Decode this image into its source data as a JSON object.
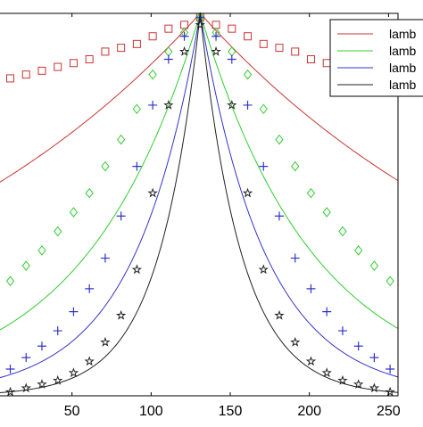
{
  "chart_data": {
    "type": "line",
    "title": "",
    "xlabel": "",
    "ylabel": "",
    "xlim": [
      0,
      256
    ],
    "ylim": [
      0,
      1
    ],
    "x_ticks": [
      50,
      100,
      150,
      200,
      250
    ],
    "x_tick_labels": [
      "50",
      "100",
      "150",
      "200",
      "250"
    ],
    "grid": false,
    "legend": {
      "placement": "top-right",
      "entries": [
        "lamb",
        "lamb",
        "lamb",
        "lamb"
      ]
    },
    "peak_x": 131,
    "marker_spacing": 10,
    "series": [
      {
        "color": "#cc3333",
        "marker": "square",
        "decay_rate": 0.0046,
        "values": [
          0.81,
          0.83,
          0.84,
          0.85,
          0.86,
          0.87,
          0.88,
          0.9,
          0.91,
          0.92,
          0.94,
          0.96,
          0.97,
          0.99,
          0.97,
          0.96,
          0.94,
          0.92,
          0.91,
          0.9,
          0.88,
          0.87,
          0.86,
          0.85,
          0.84,
          0.83,
          0.81
        ]
      },
      {
        "color": "#33cc33",
        "marker": "diamond",
        "decay_rate": 0.0139,
        "values": [
          0.26,
          0.3,
          0.34,
          0.38,
          0.43,
          0.48,
          0.53,
          0.6,
          0.67,
          0.75,
          0.84,
          0.9,
          0.95,
          0.99,
          0.95,
          0.9,
          0.84,
          0.75,
          0.67,
          0.6,
          0.53,
          0.48,
          0.43,
          0.38,
          0.34,
          0.3,
          0.26
        ]
      },
      {
        "color": "#3333cc",
        "marker": "plus",
        "decay_rate": 0.0241,
        "values": [
          0.05,
          0.07,
          0.1,
          0.13,
          0.17,
          0.22,
          0.28,
          0.36,
          0.47,
          0.6,
          0.76,
          0.88,
          0.94,
          0.99,
          0.94,
          0.88,
          0.76,
          0.6,
          0.47,
          0.36,
          0.28,
          0.22,
          0.17,
          0.13,
          0.1,
          0.07,
          0.05
        ]
      },
      {
        "color": "#222222",
        "marker": "star",
        "decay_rate": 0.038,
        "values": [
          0.01,
          0.01,
          0.02,
          0.03,
          0.04,
          0.06,
          0.09,
          0.14,
          0.21,
          0.33,
          0.53,
          0.76,
          0.9,
          0.97,
          0.9,
          0.76,
          0.53,
          0.33,
          0.21,
          0.14,
          0.09,
          0.06,
          0.04,
          0.03,
          0.02,
          0.01,
          0.01
        ]
      }
    ]
  }
}
